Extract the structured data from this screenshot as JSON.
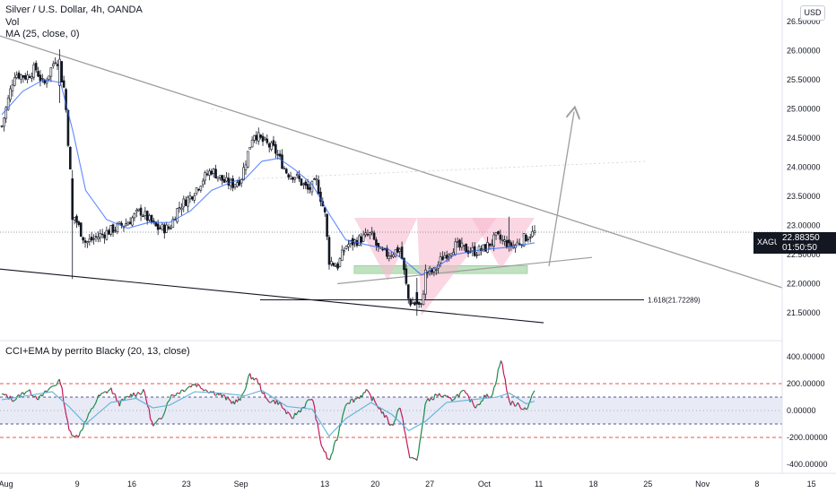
{
  "header": {
    "title": "Silver / U.S. Dollar, 4h, OANDA",
    "vol_label": "Vol",
    "ma_label": "MA (25, close, 0)",
    "indicator_label": "CCI+EMA by perrito Blacky (20, 13, close)",
    "currency_button": "USD"
  },
  "price_tag": {
    "symbol": "XAGUSD",
    "price": "22.88350",
    "countdown": "01:50:50"
  },
  "colors": {
    "up_candle": "#26a69a",
    "down_candle": "#131722",
    "ma_line": "#2962ff",
    "trendline": "#9e9e9e",
    "support_line": "#131722",
    "pattern_fill": "#f8bbd0",
    "neckline_zone": "#a5d6a7",
    "cci_up": "#1b8a4a",
    "cci_down": "#c2185b",
    "cci_ema": "#5fb1d6",
    "band_fill": "#e8eaf6",
    "band_outer": "#ef5350",
    "band_inner": "#1a237e"
  },
  "chart_data": [
    {
      "type": "candlestick",
      "title": "Silver / U.S. Dollar, 4h, OANDA",
      "x_tick_labels": [
        "Aug",
        "9",
        "16",
        "23",
        "Sep",
        "13",
        "20",
        "27",
        "Oct",
        "11",
        "18",
        "25",
        "Nov",
        "8",
        "15"
      ],
      "y_tick_labels": [
        "26.50000",
        "26.00000",
        "25.50000",
        "25.00000",
        "24.50000",
        "24.00000",
        "23.50000",
        "23.00000",
        "22.50000",
        "22.00000",
        "21.50000"
      ],
      "y_ticks": [
        26.5,
        26.0,
        25.5,
        25.0,
        24.5,
        24.0,
        23.5,
        23.0,
        22.5,
        22.0,
        21.5
      ],
      "ylim": [
        21.3,
        26.62
      ],
      "grid": false,
      "close_path": [
        [
          0,
          24.7
        ],
        [
          3,
          25.6
        ],
        [
          6,
          25.55
        ],
        [
          8,
          25.7
        ],
        [
          10,
          25.4
        ],
        [
          13,
          25.9
        ],
        [
          15,
          25.3
        ],
        [
          17,
          23.2
        ],
        [
          20,
          22.7
        ],
        [
          24,
          22.85
        ],
        [
          27,
          22.95
        ],
        [
          30,
          23.05
        ],
        [
          33,
          23.25
        ],
        [
          35,
          23.1
        ],
        [
          37,
          22.95
        ],
        [
          40,
          22.95
        ],
        [
          42,
          23.3
        ],
        [
          45,
          23.5
        ],
        [
          48,
          23.8
        ],
        [
          50,
          23.95
        ],
        [
          53,
          23.75
        ],
        [
          55,
          23.7
        ],
        [
          57,
          23.8
        ],
        [
          60,
          24.6
        ],
        [
          62,
          24.45
        ],
        [
          65,
          24.3
        ],
        [
          68,
          23.9
        ],
        [
          70,
          23.85
        ],
        [
          73,
          23.6
        ],
        [
          75,
          23.75
        ],
        [
          77,
          23.2
        ],
        [
          78,
          22.4
        ],
        [
          80,
          22.3
        ],
        [
          82,
          22.65
        ],
        [
          85,
          22.75
        ],
        [
          88,
          22.85
        ],
        [
          90,
          22.55
        ],
        [
          92,
          22.5
        ],
        [
          95,
          22.6
        ],
        [
          97,
          21.7
        ],
        [
          100,
          21.6
        ],
        [
          101,
          22.2
        ],
        [
          103,
          22.2
        ],
        [
          105,
          22.45
        ],
        [
          108,
          22.65
        ],
        [
          110,
          22.6
        ],
        [
          113,
          22.55
        ],
        [
          115,
          22.6
        ],
        [
          118,
          22.8
        ],
        [
          120,
          22.7
        ],
        [
          122,
          22.65
        ],
        [
          125,
          22.8
        ],
        [
          127,
          22.88
        ]
      ],
      "ma_path": [
        [
          0,
          24.9
        ],
        [
          5,
          25.3
        ],
        [
          10,
          25.5
        ],
        [
          14,
          25.45
        ],
        [
          17,
          24.6
        ],
        [
          20,
          23.6
        ],
        [
          25,
          23.1
        ],
        [
          30,
          22.95
        ],
        [
          35,
          23.05
        ],
        [
          40,
          23.05
        ],
        [
          45,
          23.25
        ],
        [
          50,
          23.6
        ],
        [
          55,
          23.75
        ],
        [
          58,
          23.8
        ],
        [
          62,
          24.1
        ],
        [
          66,
          24.15
        ],
        [
          70,
          23.95
        ],
        [
          74,
          23.7
        ],
        [
          78,
          23.2
        ],
        [
          82,
          22.75
        ],
        [
          88,
          22.65
        ],
        [
          92,
          22.6
        ],
        [
          96,
          22.4
        ],
        [
          100,
          22.15
        ],
        [
          104,
          22.3
        ],
        [
          108,
          22.5
        ],
        [
          114,
          22.58
        ],
        [
          120,
          22.62
        ],
        [
          127,
          22.7
        ]
      ],
      "notable_candles": [
        {
          "t": 14,
          "o": 25.4,
          "h": 26.02,
          "l": 25.1,
          "c": 25.85
        },
        {
          "t": 17,
          "o": 23.8,
          "h": 23.95,
          "l": 22.08,
          "c": 23.1
        },
        {
          "t": 99,
          "o": 21.85,
          "h": 22.1,
          "l": 21.45,
          "c": 21.65
        },
        {
          "t": 121,
          "o": 22.75,
          "h": 23.15,
          "l": 22.55,
          "c": 22.7
        }
      ],
      "annotations": [
        {
          "type": "fib_level",
          "label": "1.618(21.72289)",
          "value": 21.72289
        },
        {
          "type": "current_price",
          "value": 22.8835
        },
        {
          "type": "inverse_head_and_shoulders",
          "top": 23.13,
          "bottom": 21.45
        },
        {
          "type": "neckline_zone",
          "low": 22.22,
          "high": 22.28
        },
        {
          "type": "projection_arrow",
          "from": 22.3,
          "to": 24.95
        }
      ]
    },
    {
      "type": "line",
      "title": "CCI+EMA by perrito Blacky (20, 13, close)",
      "y_tick_labels": [
        "400.00000",
        "200.00000",
        "0.00000",
        "-200.00000",
        "-400.00000"
      ],
      "y_ticks": [
        400,
        200,
        0,
        -200,
        -400
      ],
      "ylim": [
        -420,
        440
      ],
      "bands": {
        "outer": [
          200,
          -200
        ],
        "inner": [
          100,
          -100
        ]
      },
      "cci_path": [
        [
          0,
          120
        ],
        [
          3,
          80
        ],
        [
          6,
          150
        ],
        [
          9,
          90
        ],
        [
          12,
          180
        ],
        [
          14,
          220
        ],
        [
          16,
          -150
        ],
        [
          18,
          -200
        ],
        [
          20,
          -80
        ],
        [
          23,
          100
        ],
        [
          26,
          160
        ],
        [
          28,
          50
        ],
        [
          31,
          120
        ],
        [
          34,
          140
        ],
        [
          36,
          -120
        ],
        [
          38,
          -60
        ],
        [
          40,
          100
        ],
        [
          43,
          150
        ],
        [
          46,
          200
        ],
        [
          49,
          150
        ],
        [
          52,
          120
        ],
        [
          55,
          60
        ],
        [
          57,
          80
        ],
        [
          59,
          260
        ],
        [
          61,
          220
        ],
        [
          63,
          80
        ],
        [
          66,
          60
        ],
        [
          69,
          -60
        ],
        [
          72,
          30
        ],
        [
          74,
          100
        ],
        [
          76,
          -240
        ],
        [
          78,
          -380
        ],
        [
          80,
          -200
        ],
        [
          82,
          60
        ],
        [
          84,
          80
        ],
        [
          87,
          140
        ],
        [
          90,
          20
        ],
        [
          93,
          -120
        ],
        [
          95,
          40
        ],
        [
          97,
          -330
        ],
        [
          99,
          -380
        ],
        [
          101,
          60
        ],
        [
          104,
          120
        ],
        [
          107,
          80
        ],
        [
          110,
          140
        ],
        [
          113,
          30
        ],
        [
          115,
          100
        ],
        [
          117,
          120
        ],
        [
          119,
          380
        ],
        [
          121,
          60
        ],
        [
          123,
          40
        ],
        [
          125,
          10
        ],
        [
          127,
          150
        ]
      ],
      "ema_path": [
        [
          0,
          80
        ],
        [
          6,
          110
        ],
        [
          12,
          140
        ],
        [
          16,
          30
        ],
        [
          20,
          -100
        ],
        [
          26,
          60
        ],
        [
          32,
          90
        ],
        [
          36,
          20
        ],
        [
          40,
          40
        ],
        [
          46,
          140
        ],
        [
          52,
          130
        ],
        [
          58,
          110
        ],
        [
          62,
          150
        ],
        [
          68,
          30
        ],
        [
          74,
          10
        ],
        [
          78,
          -190
        ],
        [
          82,
          -60
        ],
        [
          88,
          60
        ],
        [
          93,
          -30
        ],
        [
          97,
          -150
        ],
        [
          101,
          -80
        ],
        [
          106,
          60
        ],
        [
          112,
          80
        ],
        [
          118,
          100
        ],
        [
          121,
          130
        ],
        [
          125,
          50
        ],
        [
          127,
          70
        ]
      ]
    }
  ]
}
